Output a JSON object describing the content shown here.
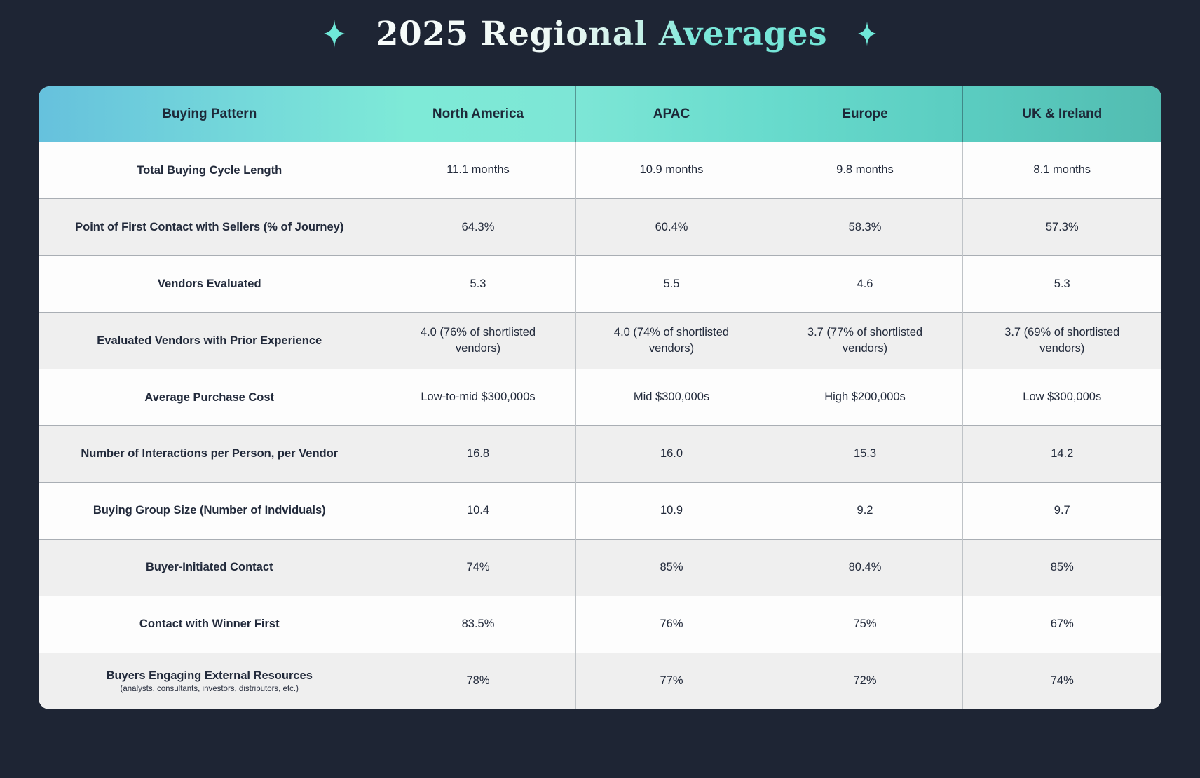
{
  "title": "2025 Regional Averages",
  "icons": {
    "left_sparkle": "sparkle-icon",
    "right_sparkle": "sparkle-icon"
  },
  "colors": {
    "background": "#1e2534",
    "header_gradient_left": "#66c1dd",
    "header_gradient_mid": "#7eead7",
    "header_gradient_right": "#52bcb1",
    "title_teal": "#72e4d6",
    "row_alt": "#efefef",
    "row_white": "#fdfdfd",
    "text_ink": "#222a3b",
    "sparkle": "#6fe8d8"
  },
  "table": {
    "columns": [
      "Buying Pattern",
      "North America",
      "APAC",
      "Europe",
      "UK & Ireland"
    ],
    "rows": [
      {
        "label": "Total Buying Cycle Length",
        "values": [
          "11.1 months",
          "10.9 months",
          "9.8 months",
          "8.1 months"
        ]
      },
      {
        "label": "Point of First Contact with Sellers (% of Journey)",
        "values": [
          "64.3%",
          "60.4%",
          "58.3%",
          "57.3%"
        ]
      },
      {
        "label": "Vendors Evaluated",
        "values": [
          "5.3",
          "5.5",
          "4.6",
          "5.3"
        ]
      },
      {
        "label": "Evaluated Vendors with Prior Experience",
        "values": [
          "4.0 (76% of shortlisted vendors)",
          "4.0 (74% of shortlisted vendors)",
          "3.7 (77% of shortlisted vendors)",
          "3.7 (69% of shortlisted vendors)"
        ]
      },
      {
        "label": "Average Purchase Cost",
        "values": [
          "Low-to-mid $300,000s",
          "Mid $300,000s",
          "High $200,000s",
          "Low $300,000s"
        ]
      },
      {
        "label": "Number of Interactions per Person, per Vendor",
        "values": [
          "16.8",
          "16.0",
          "15.3",
          "14.2"
        ]
      },
      {
        "label": "Buying Group Size (Number of Indviduals)",
        "values": [
          "10.4",
          "10.9",
          "9.2",
          "9.7"
        ]
      },
      {
        "label": "Buyer-Initiated Contact",
        "values": [
          "74%",
          "85%",
          "80.4%",
          "85%"
        ]
      },
      {
        "label": "Contact with Winner First",
        "values": [
          "83.5%",
          "76%",
          "75%",
          "67%"
        ]
      },
      {
        "label": "Buyers Engaging External Resources",
        "sublabel": "(analysts, consultants, investors, distributors, etc.)",
        "values": [
          "78%",
          "77%",
          "72%",
          "74%"
        ]
      }
    ]
  }
}
